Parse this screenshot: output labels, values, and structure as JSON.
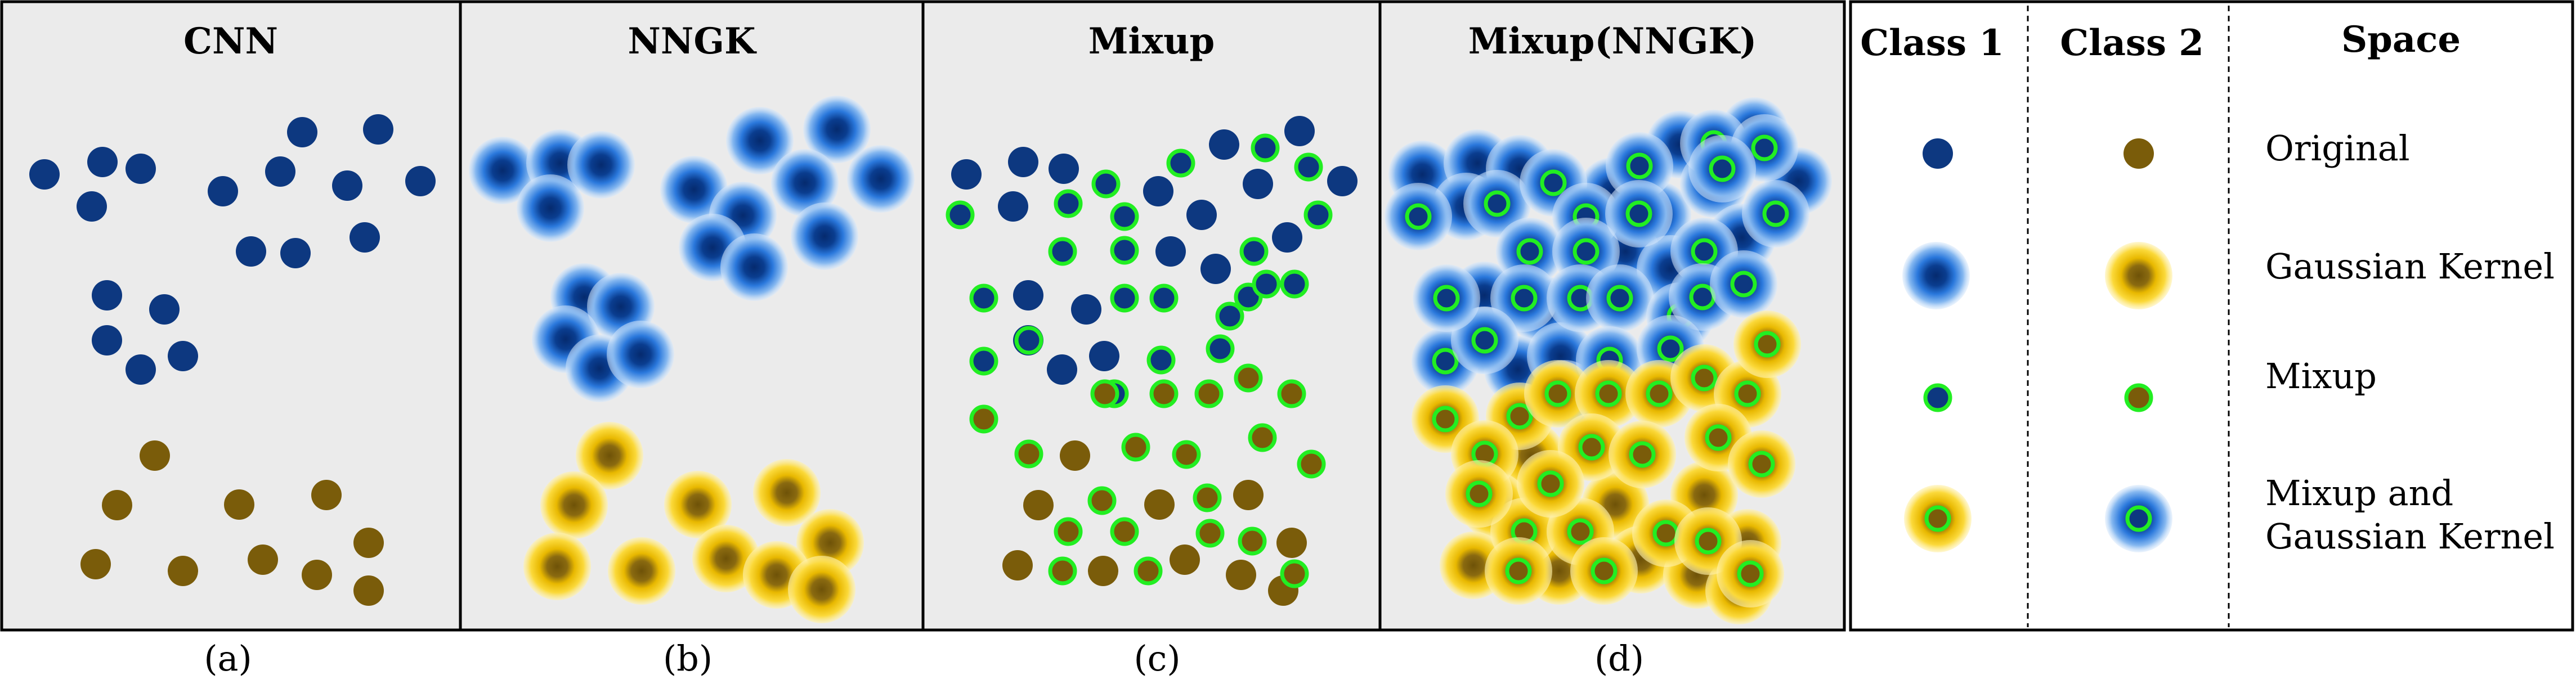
{
  "panels": [
    {
      "title": "CNN",
      "caption": "(a)"
    },
    {
      "title": "NNGK",
      "caption": "(b)"
    },
    {
      "title": "Mixup",
      "caption": "(c)"
    },
    {
      "title": "Mixup(NNGK)",
      "caption": "(d)"
    }
  ],
  "legend": {
    "headers": [
      "Class 1",
      "Class 2",
      "Space"
    ],
    "rows": [
      {
        "label": "Original"
      },
      {
        "label": "Gaussian Kernel"
      },
      {
        "label": "Mixup"
      },
      {
        "label_lines": [
          "Mixup and",
          "Gaussian Kernel"
        ]
      }
    ]
  },
  "colors": {
    "class1_dot": "#0d3880",
    "class2_dot": "#7a5c0a",
    "class1_glow": "#2f7de0",
    "class2_glow": "#f2c200",
    "mixup_ring": "#22ee22",
    "panel_bg": "#ebebeb"
  }
}
